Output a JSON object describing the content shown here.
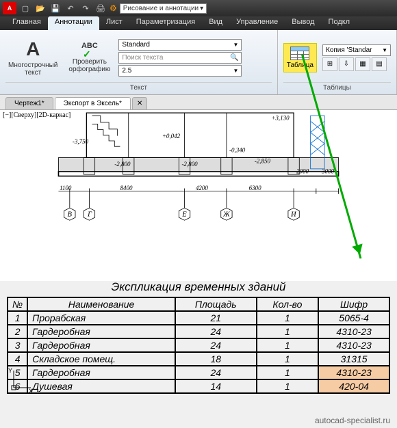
{
  "toolbar": {
    "logo_text": "A",
    "workspace": "Рисование и аннотации"
  },
  "ribbon_tabs": [
    "Главная",
    "Аннотации",
    "Лист",
    "Параметризация",
    "Вид",
    "Управление",
    "Вывод",
    "Подкл"
  ],
  "ribbon_active_tab": 1,
  "text_group": {
    "mtext_label": "Многострочный\nтекст",
    "spell_label": "Проверить\nорфографию",
    "style": "Standard",
    "search_placeholder": "Поиск текста",
    "height": "2.5",
    "group_label": "Текст",
    "abc": "ABC"
  },
  "table_group": {
    "table_label": "Таблица",
    "style_copy": "Копия 'Standar",
    "group_label": "Таблицы"
  },
  "doc_tabs": [
    {
      "label": "Чертеж1*",
      "active": false
    },
    {
      "label": "Экспорт в Эксель*",
      "active": true
    }
  ],
  "view_label": "[−][Сверху][2D-каркас]",
  "drawing": {
    "elevations": [
      "+3,130",
      "+0,042",
      "-0,340",
      "-2,850"
    ],
    "vert_dims": [
      "-3,750",
      "-2,800",
      "-2,800"
    ],
    "span_dims": [
      "1100",
      "8400",
      "4200",
      "6300",
      "2000",
      "3000"
    ],
    "grid_labels": [
      "В",
      "Г",
      "Е",
      "Ж",
      "И"
    ]
  },
  "table": {
    "title": "Экспликация временных зданий",
    "headers": [
      "№",
      "Наименование",
      "Площадь",
      "Кол-во",
      "Шифр"
    ],
    "rows": [
      [
        "1",
        "Прорабская",
        "21",
        "1",
        "5065-4"
      ],
      [
        "2",
        "Гардеробная",
        "24",
        "1",
        "4310-23"
      ],
      [
        "3",
        "Гардеробная",
        "24",
        "1",
        "4310-23"
      ],
      [
        "4",
        "Складское помещ.",
        "18",
        "1",
        "31315"
      ],
      [
        "5",
        "Гардеробная",
        "24",
        "1",
        "4310-23"
      ],
      [
        "6",
        "Душевая",
        "14",
        "1",
        "420-04"
      ]
    ],
    "highlight_rows": [
      4,
      5
    ],
    "highlight_col": 4
  },
  "ucs": {
    "y": "Y",
    "x": "X"
  },
  "footer": "autocad-specialist.ru",
  "colors": {
    "highlight_yellow": "#ffe952",
    "arrow_green": "#00a000",
    "ribbon_bg_top": "#f5f8fc",
    "ribbon_bg_bottom": "#dce5ee"
  }
}
